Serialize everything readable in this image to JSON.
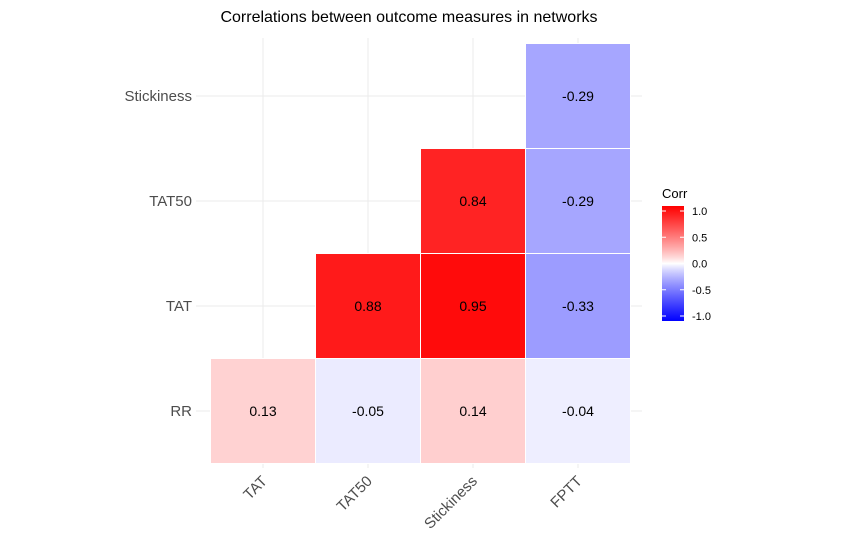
{
  "chart_data": {
    "type": "heatmap",
    "title": "Correlations between outcome measures in networks",
    "x_categories": [
      "TAT",
      "TAT50",
      "Stickiness",
      "FPTT"
    ],
    "y_categories": [
      "RR",
      "TAT",
      "TAT50",
      "Stickiness"
    ],
    "cells": [
      {
        "x": "TAT",
        "y": "RR",
        "value": 0.13,
        "label": "0.13"
      },
      {
        "x": "TAT50",
        "y": "RR",
        "value": -0.05,
        "label": "-0.05"
      },
      {
        "x": "Stickiness",
        "y": "RR",
        "value": 0.14,
        "label": "0.14"
      },
      {
        "x": "FPTT",
        "y": "RR",
        "value": -0.04,
        "label": "-0.04"
      },
      {
        "x": "TAT50",
        "y": "TAT",
        "value": 0.88,
        "label": "0.88"
      },
      {
        "x": "Stickiness",
        "y": "TAT",
        "value": 0.95,
        "label": "0.95"
      },
      {
        "x": "FPTT",
        "y": "TAT",
        "value": -0.33,
        "label": "-0.33"
      },
      {
        "x": "Stickiness",
        "y": "TAT50",
        "value": 0.84,
        "label": "0.84"
      },
      {
        "x": "FPTT",
        "y": "TAT50",
        "value": -0.29,
        "label": "-0.29"
      },
      {
        "x": "FPTT",
        "y": "Stickiness",
        "value": -0.29,
        "label": "-0.29"
      }
    ],
    "legend": {
      "title": "Corr",
      "range": [
        -1.0,
        1.0
      ],
      "ticks": [
        "1.0",
        "0.5",
        "0.0",
        "-0.5",
        "-1.0"
      ],
      "tick_values": [
        1.0,
        0.5,
        0.0,
        -0.5,
        -1.0
      ],
      "placement": "right"
    },
    "colors": {
      "low": "#0000ff",
      "mid": "#ffffff",
      "high": "#ff0000"
    },
    "grid": true
  }
}
